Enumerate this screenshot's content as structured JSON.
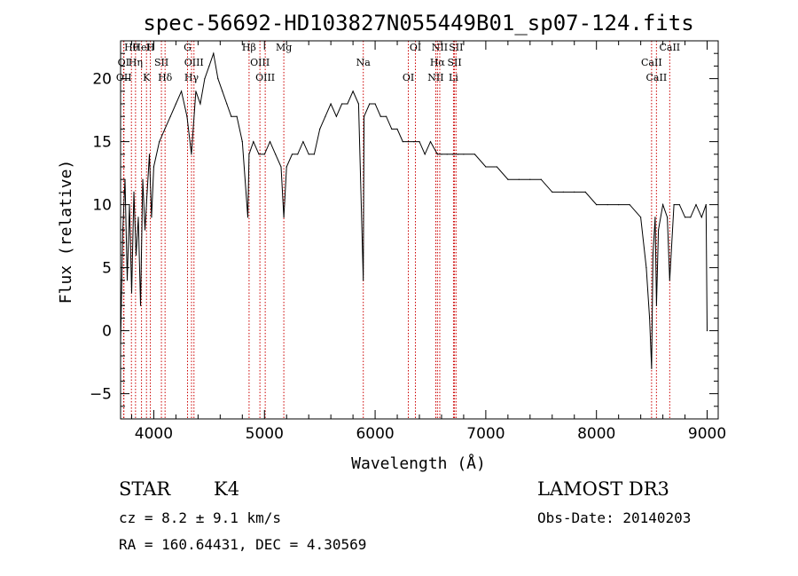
{
  "chart_data": {
    "type": "line",
    "title": "spec-56692-HD103827N055449B01_sp07-124.fits",
    "xlabel": "Wavelength (Å)",
    "ylabel": "Flux (relative)",
    "xlim": [
      3700,
      9100
    ],
    "ylim": [
      -7,
      23
    ],
    "xticks": [
      4000,
      5000,
      6000,
      7000,
      8000,
      9000
    ],
    "yticks": [
      -5,
      0,
      5,
      10,
      15,
      20
    ],
    "grid": false,
    "series": [
      {
        "name": "flux",
        "x": [
          3700,
          3720,
          3740,
          3760,
          3780,
          3800,
          3820,
          3840,
          3860,
          3880,
          3900,
          3920,
          3940,
          3960,
          3980,
          4000,
          4050,
          4100,
          4150,
          4200,
          4250,
          4300,
          4340,
          4380,
          4420,
          4460,
          4500,
          4540,
          4580,
          4620,
          4660,
          4700,
          4750,
          4800,
          4850,
          4861,
          4900,
          4950,
          5000,
          5050,
          5100,
          5150,
          5175,
          5200,
          5250,
          5300,
          5350,
          5400,
          5450,
          5500,
          5550,
          5600,
          5650,
          5700,
          5750,
          5800,
          5850,
          5893,
          5900,
          5950,
          6000,
          6050,
          6100,
          6150,
          6200,
          6250,
          6300,
          6350,
          6400,
          6450,
          6500,
          6563,
          6600,
          6650,
          6700,
          6750,
          6800,
          6900,
          7000,
          7100,
          7200,
          7300,
          7400,
          7500,
          7600,
          7700,
          7800,
          7900,
          8000,
          8100,
          8200,
          8300,
          8400,
          8450,
          8480,
          8498,
          8510,
          8530,
          8542,
          8560,
          8600,
          8640,
          8662,
          8700,
          8750,
          8800,
          8850,
          8900,
          8950,
          8990,
          9000
        ],
        "values": [
          -1,
          8,
          12,
          4,
          10,
          3,
          11,
          6,
          9,
          2,
          12,
          8,
          11,
          14,
          9,
          13,
          15,
          16,
          17,
          18,
          19,
          17,
          14,
          19,
          18,
          20,
          21,
          22,
          20,
          19,
          18,
          17,
          17,
          15,
          9,
          14,
          15,
          14,
          14,
          15,
          14,
          13,
          9,
          13,
          14,
          14,
          15,
          14,
          14,
          16,
          17,
          18,
          17,
          18,
          18,
          19,
          18,
          4,
          17,
          18,
          18,
          17,
          17,
          16,
          16,
          15,
          15,
          15,
          15,
          14,
          15,
          14,
          14,
          14,
          14,
          14,
          14,
          14,
          13,
          13,
          12,
          12,
          12,
          12,
          11,
          11,
          11,
          11,
          10,
          10,
          10,
          10,
          9,
          5,
          1,
          -3,
          6,
          9,
          2,
          8,
          10,
          9,
          4,
          10,
          10,
          9,
          9,
          10,
          9,
          10,
          0
        ]
      }
    ],
    "lines": [
      {
        "label": "Hθ",
        "wl": 3798
      },
      {
        "label": "OI",
        "wl": 3727
      },
      {
        "label": "OII",
        "wl": 3730
      },
      {
        "label": "HeI",
        "wl": 3889
      },
      {
        "label": "Hη",
        "wl": 3835
      },
      {
        "label": "K",
        "wl": 3934
      },
      {
        "label": "H",
        "wl": 3969
      },
      {
        "label": "SII",
        "wl": 4069
      },
      {
        "label": "Hδ",
        "wl": 4102
      },
      {
        "label": "G",
        "wl": 4305
      },
      {
        "label": "OIII",
        "wl": 4363
      },
      {
        "label": "Hγ",
        "wl": 4341
      },
      {
        "label": "Hβ",
        "wl": 4861
      },
      {
        "label": "OIII",
        "wl": 4959
      },
      {
        "label": "OIII",
        "wl": 5007
      },
      {
        "label": "Mg",
        "wl": 5175
      },
      {
        "label": "Na",
        "wl": 5893
      },
      {
        "label": "OI",
        "wl": 6300
      },
      {
        "label": "OI",
        "wl": 6364
      },
      {
        "label": "Hα",
        "wl": 6563
      },
      {
        "label": "NII",
        "wl": 6548
      },
      {
        "label": "NII",
        "wl": 6584
      },
      {
        "label": "SII",
        "wl": 6717
      },
      {
        "label": "Li",
        "wl": 6708
      },
      {
        "label": "SII",
        "wl": 6731
      },
      {
        "label": "CaII",
        "wl": 8498
      },
      {
        "label": "CaII",
        "wl": 8542
      },
      {
        "label": "CaII",
        "wl": 8662
      }
    ],
    "line_color": "#cc0000"
  },
  "info": {
    "class": "STAR",
    "subclass": "K4",
    "cz": "cz = 8.2 ± 9.1 km/s",
    "radec": "RA = 160.64431, DEC =   4.30569",
    "survey": "LAMOST DR3",
    "obsdate": "Obs-Date: 20140203"
  }
}
